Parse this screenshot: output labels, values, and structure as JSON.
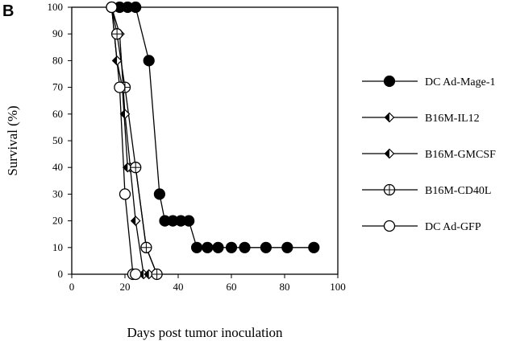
{
  "panel_label": "B",
  "chart_data": {
    "type": "line",
    "xlabel": "Days post tumor inoculation",
    "ylabel": "Survival (%)",
    "xlim": [
      0,
      100
    ],
    "ylim": [
      0,
      100
    ],
    "xticks": [
      0,
      20,
      40,
      60,
      80,
      100
    ],
    "yticks": [
      0,
      10,
      20,
      30,
      40,
      50,
      60,
      70,
      80,
      90,
      100
    ],
    "grid": false,
    "legend_position": "right",
    "series": [
      {
        "name": "DC Ad-Mage-1",
        "marker": "filled-circle",
        "x": [
          15,
          18,
          21,
          24,
          29,
          33,
          35,
          38,
          41,
          44,
          47,
          51,
          55,
          60,
          65,
          73,
          81,
          91
        ],
        "y": [
          100,
          100,
          100,
          100,
          80,
          30,
          20,
          20,
          20,
          20,
          10,
          10,
          10,
          10,
          10,
          10,
          10,
          10
        ]
      },
      {
        "name": "B16M-IL12",
        "marker": "half-filled-diamond",
        "x": [
          15,
          18,
          20,
          22,
          24,
          27,
          29
        ],
        "y": [
          100,
          90,
          60,
          40,
          20,
          0,
          0
        ]
      },
      {
        "name": "B16M-GMCSF",
        "marker": "half-filled-diamond",
        "x": [
          15,
          17,
          19,
          21,
          24,
          28,
          32
        ],
        "y": [
          100,
          80,
          70,
          40,
          40,
          10,
          0
        ]
      },
      {
        "name": "B16M-CD40L",
        "marker": "crossed-circle",
        "x": [
          15,
          17,
          20,
          24,
          28,
          32
        ],
        "y": [
          100,
          90,
          70,
          40,
          10,
          0
        ]
      },
      {
        "name": "DC Ad-GFP",
        "marker": "open-circle",
        "x": [
          15,
          18,
          20,
          23,
          24
        ],
        "y": [
          100,
          70,
          30,
          0,
          0
        ]
      }
    ]
  }
}
